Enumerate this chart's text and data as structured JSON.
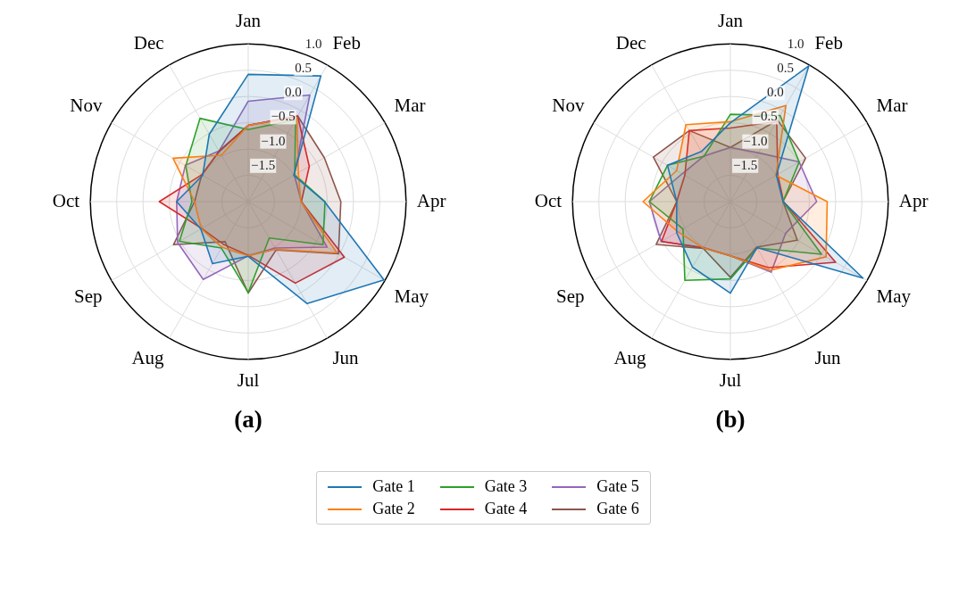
{
  "chart_data": [
    {
      "type": "radar",
      "title": "(a)",
      "categories": [
        "Jan",
        "Feb",
        "Mar",
        "Apr",
        "May",
        "Jun",
        "Jul",
        "Aug",
        "Sep",
        "Oct",
        "Nov",
        "Dec"
      ],
      "ylim": [
        -2,
        1
      ],
      "yticks": [
        {
          "value": -1.5,
          "label": "−1.5"
        },
        {
          "value": -1.0,
          "label": "−1.0"
        },
        {
          "value": -0.5,
          "label": "−0.5"
        },
        {
          "value": 0.0,
          "label": "0.0"
        },
        {
          "value": 0.5,
          "label": "0.5"
        },
        {
          "value": 1.0,
          "label": "1.0"
        }
      ],
      "grid": true,
      "legend": "bottom",
      "marker": "none",
      "series": [
        {
          "name": "Gate 1",
          "color": "#1f77b4",
          "values": [
            0.42,
            0.76,
            -1.0,
            -0.55,
            0.98,
            0.24,
            -0.96,
            -0.64,
            -0.96,
            -0.64,
            -1.0,
            -0.52
          ]
        },
        {
          "name": "Gate 2",
          "color": "#ff7f0e",
          "values": [
            -0.55,
            -0.15,
            -0.9,
            -1.0,
            -0.05,
            -0.95,
            -0.97,
            -1.0,
            -0.97,
            -0.98,
            -0.35,
            -0.98
          ]
        },
        {
          "name": "Gate 3",
          "color": "#2ca02c",
          "values": [
            -0.63,
            -0.2,
            -0.98,
            -0.54,
            -0.36,
            -1.2,
            -0.27,
            -0.98,
            -0.49,
            -0.93,
            -0.63,
            -0.17
          ]
        },
        {
          "name": "Gate 4",
          "color": "#d62728",
          "values": [
            -0.55,
            -0.12,
            -0.66,
            -0.99,
            0.11,
            -0.21,
            -0.98,
            -1.06,
            -0.98,
            -0.31,
            -0.98,
            -0.89
          ]
        },
        {
          "name": "Gate 5",
          "color": "#9467bd",
          "values": [
            -0.09,
            0.34,
            -0.99,
            -0.99,
            -0.27,
            -0.98,
            -0.97,
            -0.29,
            -0.45,
            -0.64,
            -0.62,
            -0.89
          ]
        },
        {
          "name": "Gate 6",
          "color": "#8c564b",
          "values": [
            -0.55,
            -0.12,
            -0.33,
            -0.24,
            -0.02,
            -0.94,
            -0.26,
            -1.12,
            -0.36,
            -0.98,
            -0.98,
            -0.9
          ]
        }
      ]
    },
    {
      "type": "radar",
      "title": "(b)",
      "categories": [
        "Jan",
        "Feb",
        "Mar",
        "Apr",
        "May",
        "Jun",
        "Jul",
        "Aug",
        "Sep",
        "Oct",
        "Nov",
        "Dec"
      ],
      "ylim": [
        -2,
        1
      ],
      "yticks": [
        {
          "value": -1.5,
          "label": "−1.5"
        },
        {
          "value": -1.0,
          "label": "−1.0"
        },
        {
          "value": -0.5,
          "label": "−0.5"
        },
        {
          "value": 0.0,
          "label": "0.0"
        },
        {
          "value": 0.5,
          "label": "0.5"
        },
        {
          "value": 1.0,
          "label": "1.0"
        }
      ],
      "grid": true,
      "legend": "bottom",
      "marker": "none",
      "series": [
        {
          "name": "Gate 1",
          "color": "#1f77b4",
          "values": [
            -0.5,
            0.98,
            -0.99,
            -1.0,
            0.91,
            -0.99,
            -0.26,
            -0.56,
            -0.82,
            -0.98,
            -0.62,
            -0.9
          ]
        },
        {
          "name": "Gate 2",
          "color": "#ff7f0e",
          "values": [
            -0.48,
            0.11,
            -1.0,
            -0.16,
            0.1,
            -0.49,
            -0.97,
            -0.98,
            -0.85,
            -0.34,
            -0.82,
            -0.31
          ]
        },
        {
          "name": "Gate 3",
          "color": "#2ca02c",
          "values": [
            -0.34,
            -0.11,
            -0.49,
            -1.0,
            0.0,
            -0.98,
            -0.53,
            -0.27,
            -0.96,
            -0.46,
            -0.62,
            -1.0
          ]
        },
        {
          "name": "Gate 4",
          "color": "#d62728",
          "values": [
            -0.6,
            -0.24,
            -0.96,
            -0.99,
            0.31,
            -0.55,
            -0.97,
            -0.98,
            -0.49,
            -0.98,
            -1.0,
            -0.44
          ]
        },
        {
          "name": "Gate 5",
          "color": "#9467bd",
          "values": [
            -0.97,
            -0.93,
            -0.49,
            -0.36,
            -0.79,
            -0.45,
            -0.97,
            -0.99,
            -0.48,
            -0.46,
            -0.94,
            -1.0
          ]
        },
        {
          "name": "Gate 6",
          "color": "#8c564b",
          "values": [
            -0.97,
            -0.21,
            -0.35,
            -1.0,
            -0.53,
            -1.0,
            -0.56,
            -0.97,
            -0.37,
            -0.98,
            -0.31,
            -0.44
          ]
        }
      ]
    }
  ]
}
